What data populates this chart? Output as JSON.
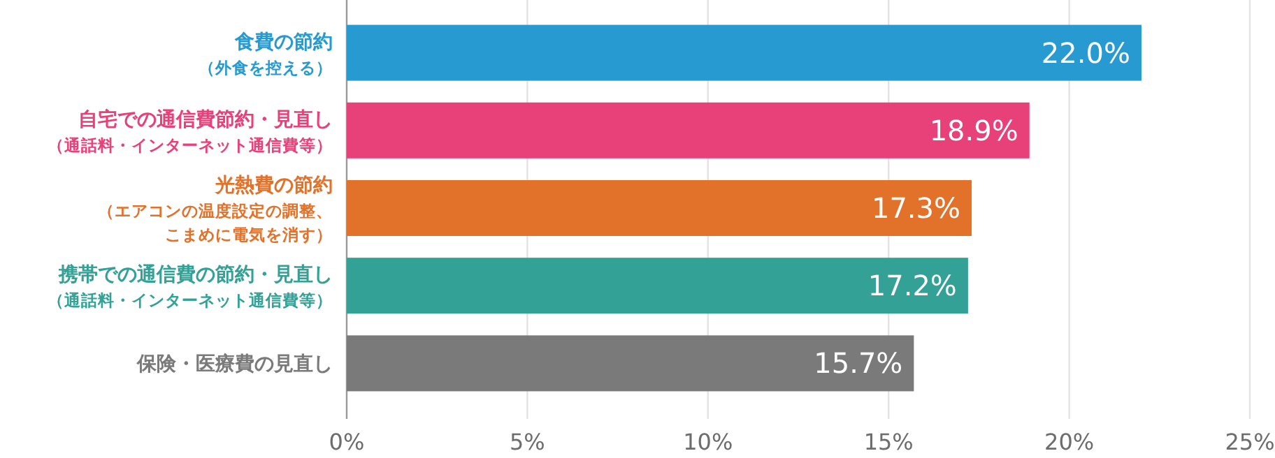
{
  "chart_data": {
    "type": "bar",
    "orientation": "horizontal",
    "categories": [
      "食費の節約（外食を控える）",
      "自宅での通信費節約・見直し（通話料・インターネット通信費等）",
      "光熱費の節約（エアコンの温度設定の調整、こまめに電気を消す）",
      "携帯での通信費の節約・見直し（通話料・インターネット通信費等）",
      "保険・医療費の見直し"
    ],
    "values": [
      22.0,
      18.9,
      17.3,
      17.2,
      15.7
    ],
    "value_labels": [
      "22.0%",
      "18.9%",
      "17.3%",
      "17.2%",
      "15.7%"
    ],
    "colors": [
      "#279ad1",
      "#e8417a",
      "#e2722a",
      "#33a196",
      "#7a7a7a"
    ],
    "xlim": [
      0,
      25
    ],
    "xticks": [
      {
        "value": 0,
        "label": "0%"
      },
      {
        "value": 5,
        "label": "5%"
      },
      {
        "value": 10,
        "label": "10%"
      },
      {
        "value": 15,
        "label": "15%"
      },
      {
        "value": 20,
        "label": "20%"
      },
      {
        "value": 25,
        "label": "25%"
      }
    ],
    "grid": "x"
  }
}
